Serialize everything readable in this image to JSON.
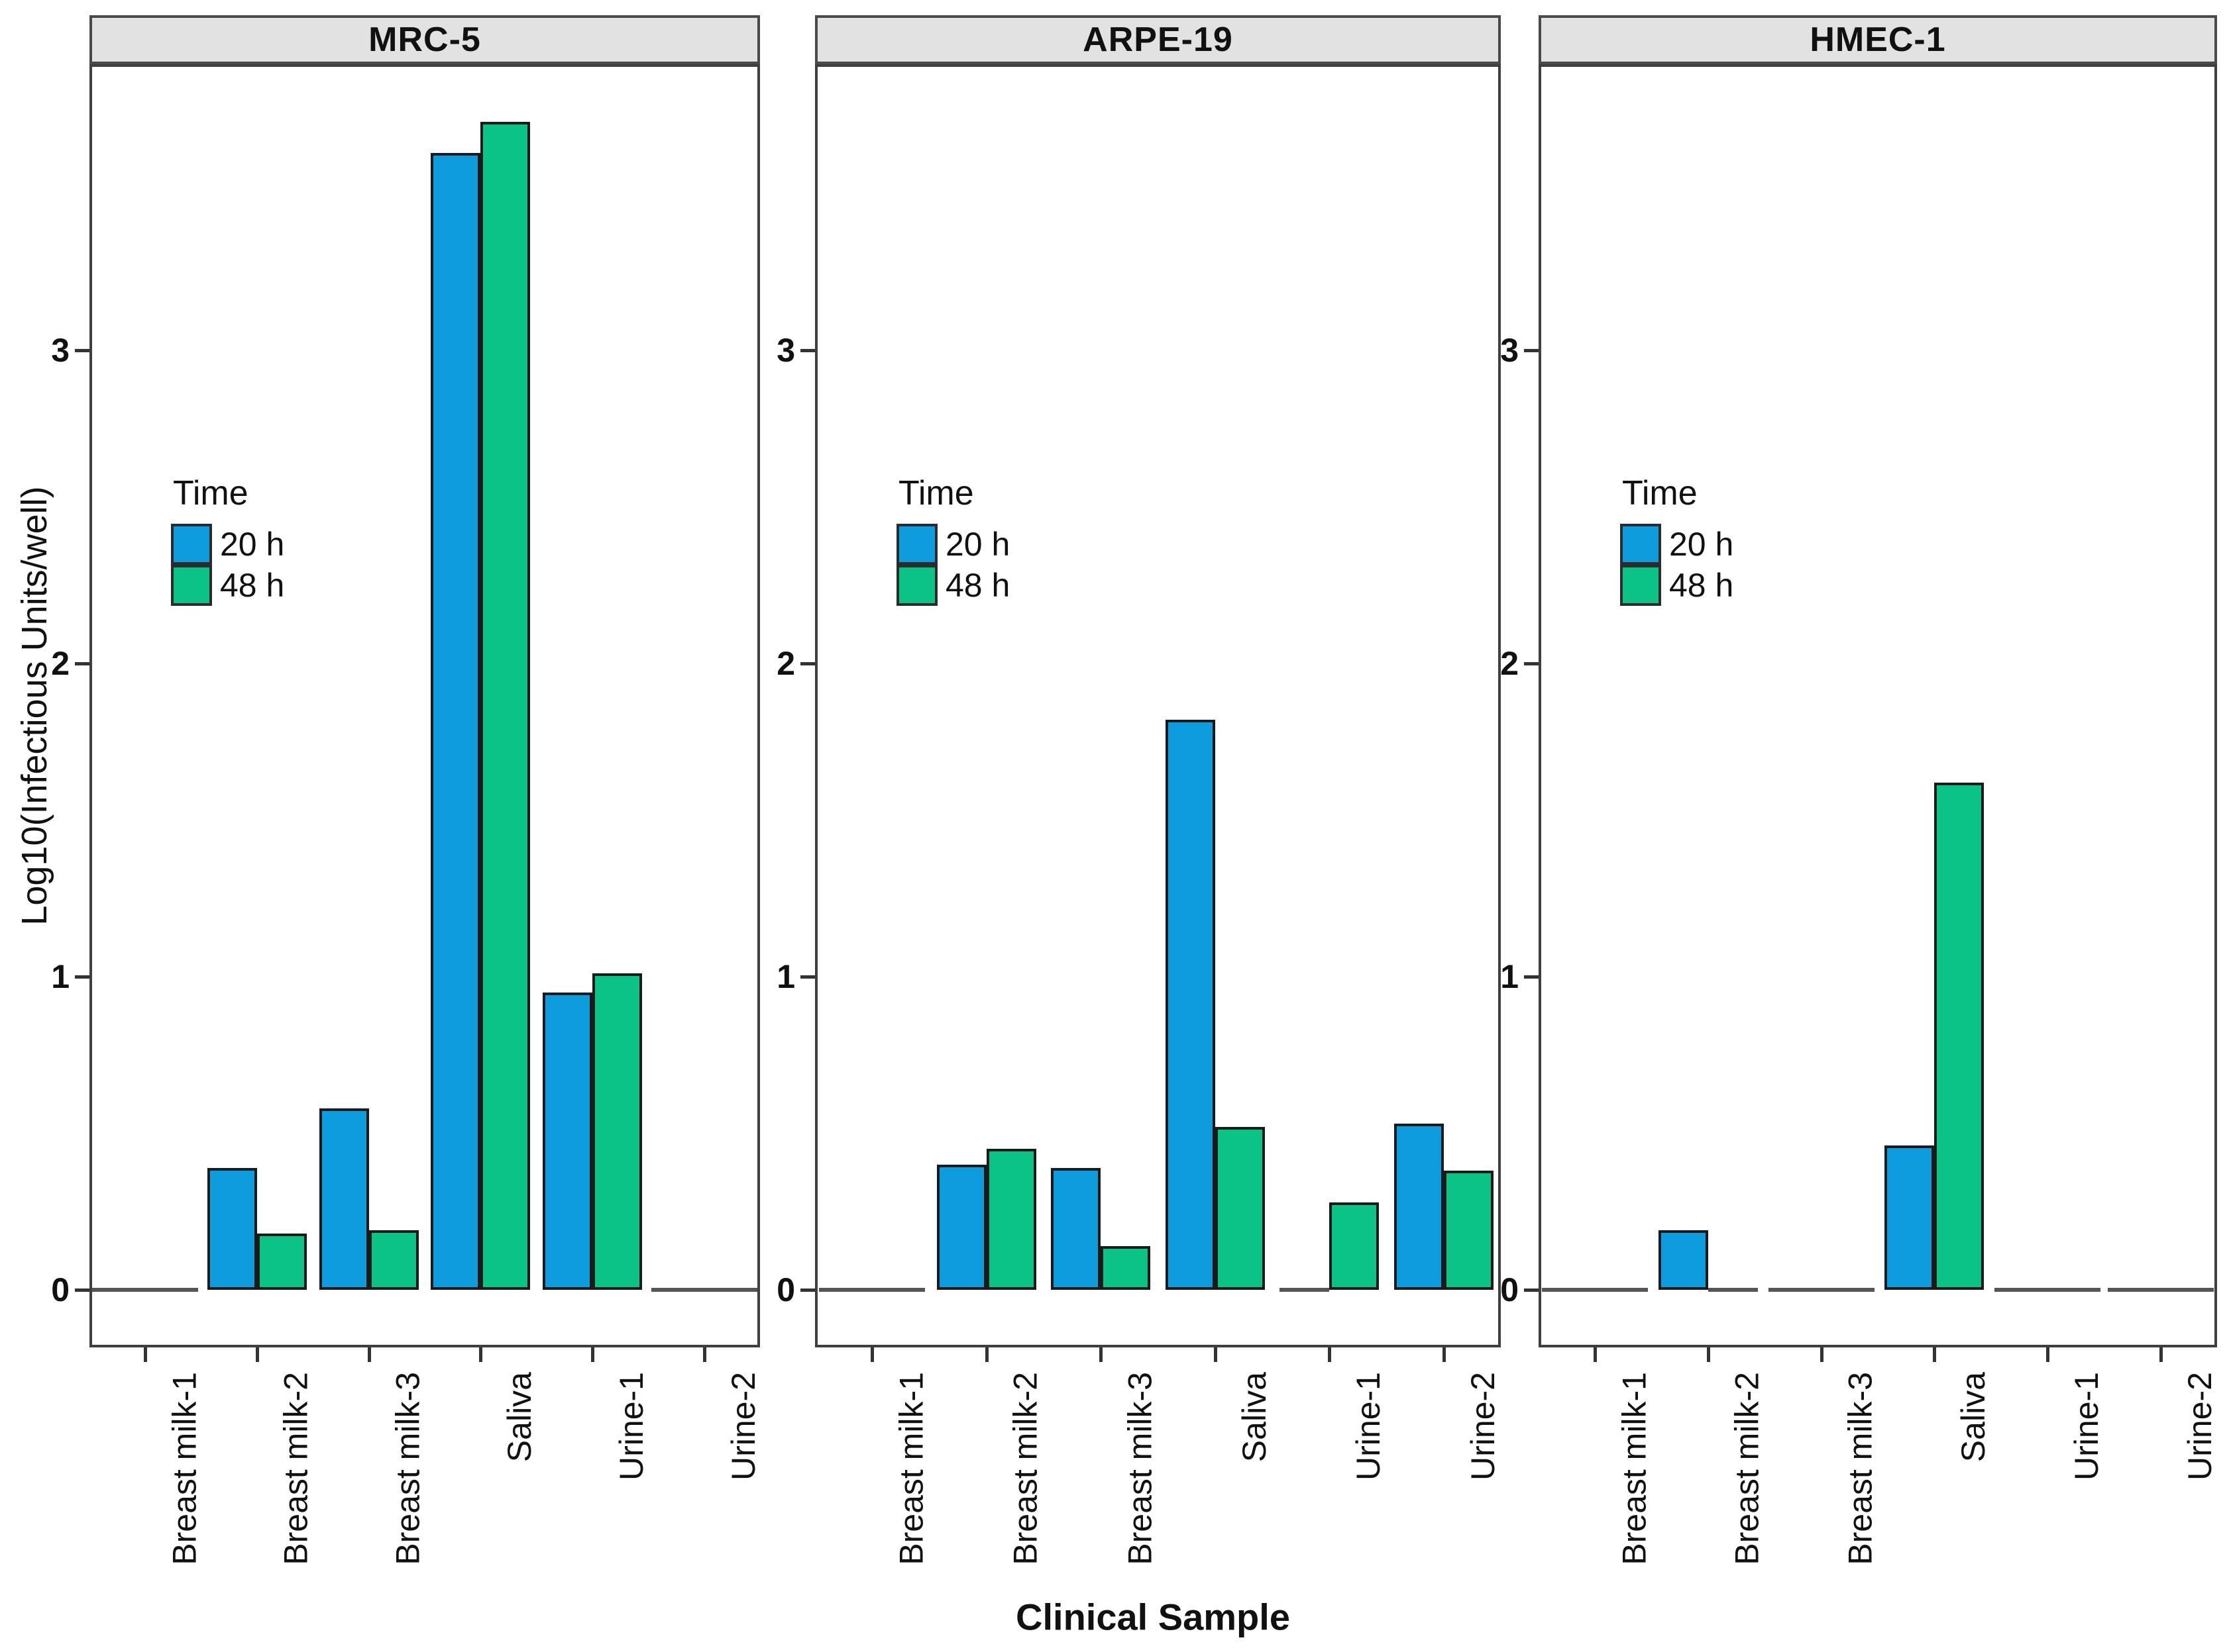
{
  "figure": {
    "x_axis_title": "Clinical Sample",
    "y_axis_title": "Log10(Infectious Units/well)"
  },
  "legend": {
    "title": "Time",
    "items": [
      {
        "label": "20 h",
        "color": "#0d9cde"
      },
      {
        "label": "48 h",
        "color": "#0bc287"
      }
    ]
  },
  "colors": {
    "bar_blue": "#0d9cde",
    "bar_green": "#0bc287",
    "bar_stroke": "#1a1a1a",
    "strip_bg": "#e2e2e2",
    "strip_border": "#4a4a4a",
    "panel_border": "#3f3f3f",
    "zero_line": "#555555",
    "tick": "#333333"
  },
  "chart_data": {
    "type": "bar",
    "facets": [
      "MRC-5",
      "ARPE-19",
      "HMEC-1"
    ],
    "categories": [
      "Breast milk-1",
      "Breast milk-2",
      "Breast milk-3",
      "Saliva",
      "Urine-1",
      "Urine-2"
    ],
    "series_names": [
      "20 h",
      "48 h"
    ],
    "xlabel": "Clinical Sample",
    "ylabel": "Log10(Infectious Units/well)",
    "yticks": [
      0,
      1,
      2,
      3
    ],
    "ylim": [
      -0.18,
      3.92
    ],
    "grid": false,
    "legend_position": "inside-upper-left-of-each-facet",
    "series": [
      {
        "facet": "MRC-5",
        "name": "20 h",
        "values": [
          0,
          0.39,
          0.58,
          3.63,
          0.95,
          0
        ]
      },
      {
        "facet": "MRC-5",
        "name": "48 h",
        "values": [
          0,
          0.18,
          0.19,
          3.73,
          1.01,
          0
        ]
      },
      {
        "facet": "ARPE-19",
        "name": "20 h",
        "values": [
          0,
          0.4,
          0.39,
          1.82,
          0,
          0.53
        ]
      },
      {
        "facet": "ARPE-19",
        "name": "48 h",
        "values": [
          0,
          0.45,
          0.14,
          0.52,
          0.28,
          0.38
        ]
      },
      {
        "facet": "HMEC-1",
        "name": "20 h",
        "values": [
          0,
          0.19,
          0,
          0.46,
          0,
          0
        ]
      },
      {
        "facet": "HMEC-1",
        "name": "48 h",
        "values": [
          0,
          0,
          0,
          1.62,
          0,
          0
        ]
      }
    ]
  }
}
